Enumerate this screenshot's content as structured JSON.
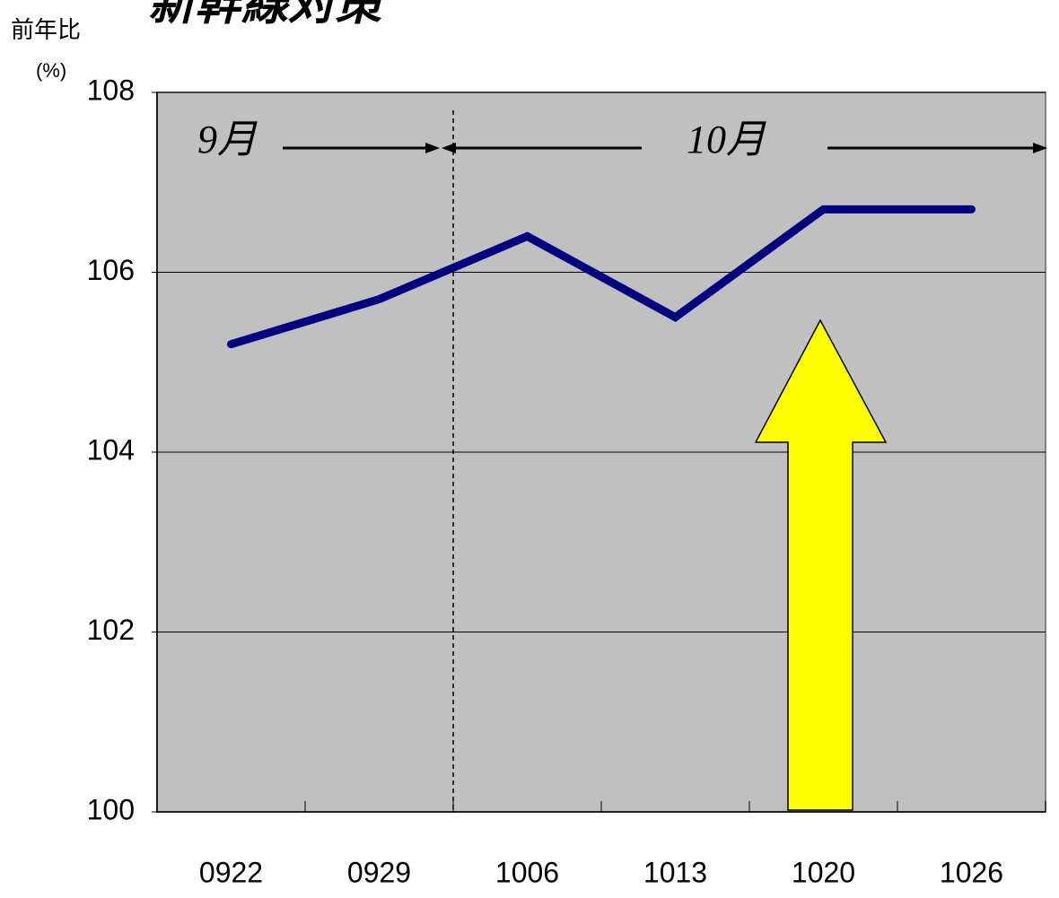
{
  "chart_data": {
    "type": "line",
    "title": "新幹線対策",
    "y_label": "前年比",
    "y_unit": "(%)",
    "categories": [
      "0922",
      "0929",
      "1006",
      "1013",
      "1020",
      "1026"
    ],
    "series": [
      {
        "name": "前年比",
        "color": "#000080",
        "values": [
          105.2,
          105.7,
          106.4,
          105.5,
          106.7,
          106.7
        ]
      }
    ],
    "ylim": [
      100,
      108
    ],
    "yticks": [
      100,
      102,
      104,
      106,
      108
    ],
    "grid": true,
    "annotations": [
      "9月",
      "10月"
    ]
  }
}
